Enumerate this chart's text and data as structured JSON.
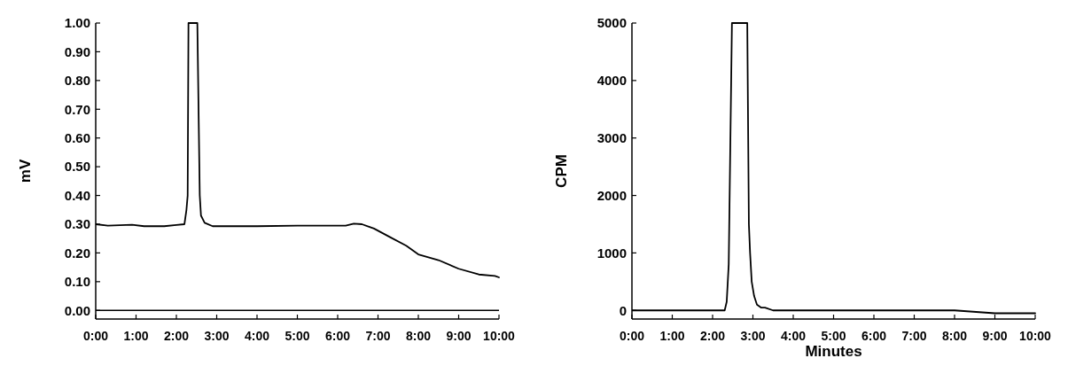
{
  "chart_data": [
    {
      "type": "line",
      "ylabel": "mV",
      "xlim": [
        0,
        10
      ],
      "ylim": [
        -0.03,
        1.0
      ],
      "xticks": [
        {
          "value": 0,
          "label": "0:00"
        },
        {
          "value": 1,
          "label": "1:00"
        },
        {
          "value": 2,
          "label": "2:00"
        },
        {
          "value": 3,
          "label": "3:00"
        },
        {
          "value": 4,
          "label": "4:00"
        },
        {
          "value": 5,
          "label": "5:00"
        },
        {
          "value": 6,
          "label": "6:00"
        },
        {
          "value": 7,
          "label": "7:00"
        },
        {
          "value": 8,
          "label": "8:00"
        },
        {
          "value": 9,
          "label": "9:00"
        },
        {
          "value": 10,
          "label": "10:00"
        }
      ],
      "yticks": [
        {
          "value": 0,
          "label": "0.00"
        },
        {
          "value": 0.1,
          "label": "0.10"
        },
        {
          "value": 0.2,
          "label": "0.20"
        },
        {
          "value": 0.3,
          "label": "0.30"
        },
        {
          "value": 0.4,
          "label": "0.40"
        },
        {
          "value": 0.5,
          "label": "0.50"
        },
        {
          "value": 0.6,
          "label": "0.60"
        },
        {
          "value": 0.7,
          "label": "0.70"
        },
        {
          "value": 0.8,
          "label": "0.80"
        },
        {
          "value": 0.9,
          "label": "0.90"
        },
        {
          "value": 1.0,
          "label": "1.00"
        }
      ],
      "ref_lines": [
        {
          "axis": "y",
          "value": 0,
          "color": "#000000"
        }
      ],
      "grid": false,
      "marker": "none",
      "line_style": "solid",
      "series": [
        {
          "color": "#000000",
          "x": [
            0,
            0.3,
            0.9,
            1.2,
            1.7,
            2.0,
            2.2,
            2.25,
            2.28,
            2.3,
            2.52,
            2.58,
            2.61,
            2.7,
            2.9,
            4,
            5,
            6,
            6.2,
            6.4,
            6.6,
            6.9,
            7.3,
            7.7,
            8.0,
            8.5,
            9.0,
            9.5,
            9.9,
            10
          ],
          "values": [
            0.3,
            0.295,
            0.298,
            0.293,
            0.293,
            0.297,
            0.3,
            0.35,
            0.4,
            1.0,
            1.0,
            0.4,
            0.33,
            0.305,
            0.293,
            0.293,
            0.295,
            0.295,
            0.295,
            0.302,
            0.3,
            0.285,
            0.255,
            0.225,
            0.195,
            0.175,
            0.145,
            0.125,
            0.12,
            0.115
          ]
        }
      ]
    },
    {
      "type": "line",
      "ylabel": "CPM",
      "xlabel": "Minutes",
      "xlim": [
        0,
        10
      ],
      "ylim": [
        -150,
        5000
      ],
      "xticks": [
        {
          "value": 0,
          "label": "0:00"
        },
        {
          "value": 1,
          "label": "1:00"
        },
        {
          "value": 2,
          "label": "2:00"
        },
        {
          "value": 3,
          "label": "3:00"
        },
        {
          "value": 4,
          "label": "4:00"
        },
        {
          "value": 5,
          "label": "5:00"
        },
        {
          "value": 6,
          "label": "6:00"
        },
        {
          "value": 7,
          "label": "7:00"
        },
        {
          "value": 8,
          "label": "8:00"
        },
        {
          "value": 9,
          "label": "9:00"
        },
        {
          "value": 10,
          "label": "10:00"
        }
      ],
      "yticks": [
        0,
        1000,
        2000,
        3000,
        4000,
        5000
      ],
      "grid": false,
      "marker": "none",
      "line_style": "solid",
      "series": [
        {
          "color": "#000000",
          "x": [
            0,
            1,
            2,
            2.3,
            2.35,
            2.4,
            2.48,
            2.86,
            2.9,
            2.93,
            2.97,
            3.03,
            3.1,
            3.2,
            3.3,
            3.5,
            4,
            5,
            6,
            7,
            8,
            9,
            10
          ],
          "values": [
            0,
            0,
            0,
            0,
            150,
            800,
            5000,
            5000,
            1500,
            1000,
            500,
            250,
            100,
            50,
            50,
            0,
            0,
            0,
            0,
            0,
            0,
            -50,
            -50
          ]
        }
      ]
    }
  ]
}
